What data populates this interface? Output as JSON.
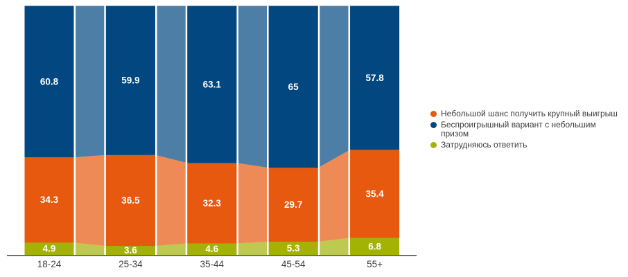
{
  "chart_data": {
    "type": "bar",
    "subtype": "100-percent-stacked-columns-with-translucent-stacked-area",
    "categories": [
      "18-24",
      "25-34",
      "35-44",
      "45-54",
      "55+"
    ],
    "series": [
      {
        "name": "Небольшой шанс получить крупный выигрыш",
        "color": "#e6590e",
        "values": [
          34.3,
          36.5,
          32.3,
          29.7,
          35.4
        ]
      },
      {
        "name": "Беспроигрышный вариант с небольшим призом",
        "color": "#02477f",
        "values": [
          60.8,
          59.9,
          63.1,
          65,
          57.8
        ]
      },
      {
        "name": "Затрудняюсь ответить",
        "color": "#a3b204",
        "values": [
          4.9,
          3.6,
          4.6,
          5.3,
          6.8
        ]
      }
    ],
    "stack_order_bottom_to_top": [
      2,
      0,
      1
    ],
    "title": "",
    "xlabel": "",
    "ylabel": "",
    "ylim": [
      0,
      100
    ],
    "grid": false,
    "legend_position": "right",
    "area_opacity": 0.7,
    "colors": {
      "axis_line": "#595959",
      "value_label": "#ffffff",
      "category_label": "#3f3f3f",
      "legend_text": "#3c3c3c",
      "background": "#ffffff",
      "separator": "#ffffff"
    }
  }
}
